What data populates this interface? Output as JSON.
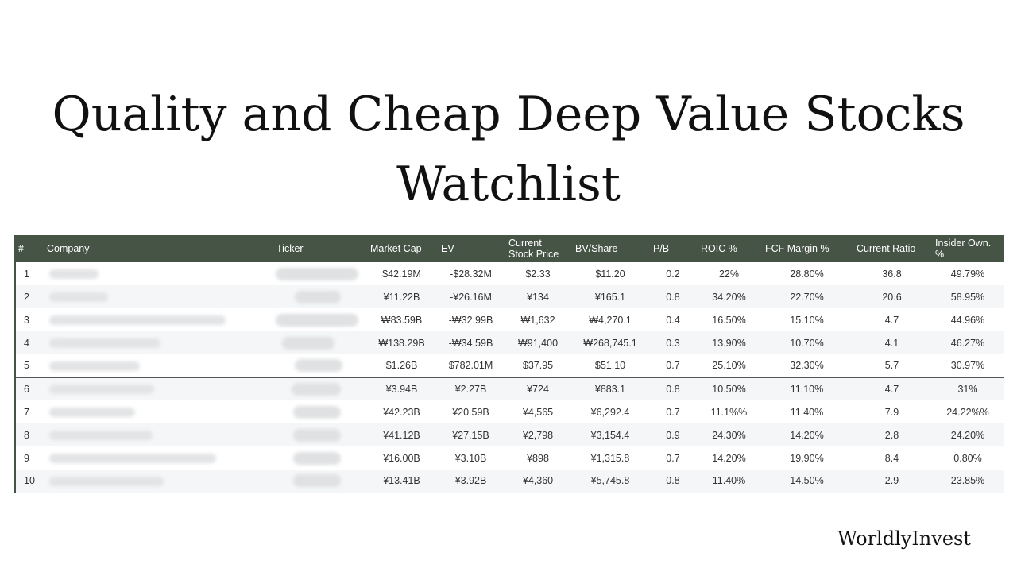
{
  "title": {
    "line1": "Quality and Cheap Deep Value Stocks",
    "line2": "Watchlist"
  },
  "table": {
    "headers": [
      "#",
      "Company",
      "Ticker",
      "Market Cap",
      "EV",
      "Current Stock Price",
      "BV/Share",
      "P/B",
      "ROIC %",
      "FCF Margin %",
      "Current Ratio",
      "Insider Own. %"
    ],
    "rows": [
      {
        "num": "1",
        "market_cap": "$42.19M",
        "ev": "-$28.32M",
        "price": "$2.33",
        "bv_share": "$11.20",
        "pb": "0.2",
        "roic": "22%",
        "fcf_margin": "28.80%",
        "current_ratio": "36.8",
        "insider_own": "49.79%"
      },
      {
        "num": "2",
        "market_cap": "¥11.22B",
        "ev": "-¥26.16M",
        "price": "¥134",
        "bv_share": "¥165.1",
        "pb": "0.8",
        "roic": "34.20%",
        "fcf_margin": "22.70%",
        "current_ratio": "20.6",
        "insider_own": "58.95%"
      },
      {
        "num": "3",
        "market_cap": "₩83.59B",
        "ev": "-₩32.99B",
        "price": "₩1,632",
        "bv_share": "₩4,270.1",
        "pb": "0.4",
        "roic": "16.50%",
        "fcf_margin": "15.10%",
        "current_ratio": "4.7",
        "insider_own": "44.96%"
      },
      {
        "num": "4",
        "market_cap": "₩138.29B",
        "ev": "-₩34.59B",
        "price": "₩91,400",
        "bv_share": "₩268,745.1",
        "pb": "0.3",
        "roic": "13.90%",
        "fcf_margin": "10.70%",
        "current_ratio": "4.1",
        "insider_own": "46.27%"
      },
      {
        "num": "5",
        "market_cap": "$1.26B",
        "ev": "$782.01M",
        "price": "$37.95",
        "bv_share": "$51.10",
        "pb": "0.7",
        "roic": "25.10%",
        "fcf_margin": "32.30%",
        "current_ratio": "5.7",
        "insider_own": "30.97%"
      },
      {
        "num": "6",
        "market_cap": "¥3.94B",
        "ev": "¥2.27B",
        "price": "¥724",
        "bv_share": "¥883.1",
        "pb": "0.8",
        "roic": "10.50%",
        "fcf_margin": "11.10%",
        "current_ratio": "4.7",
        "insider_own": "31%"
      },
      {
        "num": "7",
        "market_cap": "¥42.23B",
        "ev": "¥20.59B",
        "price": "¥4,565",
        "bv_share": "¥6,292.4",
        "pb": "0.7",
        "roic": "11.1%%",
        "fcf_margin": "11.40%",
        "current_ratio": "7.9",
        "insider_own": "24.22%%"
      },
      {
        "num": "8",
        "market_cap": "¥41.12B",
        "ev": "¥27.15B",
        "price": "¥2,798",
        "bv_share": "¥3,154.4",
        "pb": "0.9",
        "roic": "24.30%",
        "fcf_margin": "14.20%",
        "current_ratio": "2.8",
        "insider_own": "24.20%"
      },
      {
        "num": "9",
        "market_cap": "¥16.00B",
        "ev": "¥3.10B",
        "price": "¥898",
        "bv_share": "¥1,315.8",
        "pb": "0.7",
        "roic": "14.20%",
        "fcf_margin": "19.90%",
        "current_ratio": "8.4",
        "insider_own": "0.80%"
      },
      {
        "num": "10",
        "market_cap": "¥13.41B",
        "ev": "¥3.92B",
        "price": "¥4,360",
        "bv_share": "¥5,745.8",
        "pb": "0.8",
        "roic": "11.40%",
        "fcf_margin": "14.50%",
        "current_ratio": "2.9",
        "insider_own": "23.85%"
      }
    ]
  },
  "brand": "WorldlyInvest",
  "colors": {
    "header_bg": "#465446",
    "header_text": "#ffffff",
    "stripe": "#f4f6f8"
  }
}
